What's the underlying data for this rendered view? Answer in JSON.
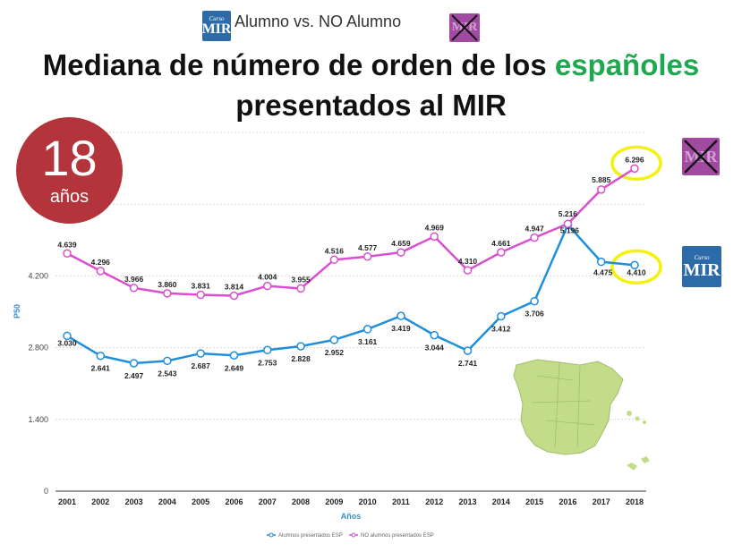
{
  "header": {
    "text": "Alumno vs. NO Alumno",
    "logo_small": "Curso",
    "logo_big": "MIR"
  },
  "title": {
    "line1_prefix": "Mediana de número de orden de los ",
    "line1_highlight": "españoles",
    "line2": "presentados al MIR",
    "highlight_color": "#1ea84f"
  },
  "badge": {
    "number": "18",
    "unit": "años",
    "color": "#b3343a"
  },
  "colors": {
    "alumnos": "#1f8fdc",
    "no_alumnos": "#d94fcf",
    "highlight_ring": "#f2f20a",
    "logo_blue": "#2d6aa8",
    "logo_purple": "#a24aa2"
  },
  "chart_data": {
    "type": "line",
    "categories": [
      "2001",
      "2002",
      "2003",
      "2004",
      "2005",
      "2006",
      "2007",
      "2008",
      "2009",
      "2010",
      "2011",
      "2012",
      "2013",
      "2014",
      "2015",
      "2016",
      "2017",
      "2018"
    ],
    "series": [
      {
        "name": "Alumnos presentados ESP",
        "values": [
          3030,
          2641,
          2497,
          2543,
          2687,
          2649,
          2753,
          2828,
          2952,
          3161,
          3419,
          3044,
          2741,
          3412,
          3706,
          5196,
          4475,
          4410
        ],
        "labels": [
          "3.030",
          "2.641",
          "2.497",
          "2.543",
          "2.687",
          "2.649",
          "2.753",
          "2.828",
          "2.952",
          "3.161",
          "3.419",
          "3.044",
          "2.741",
          "3.412",
          "3.706",
          "5.196",
          "4.475",
          "4.410"
        ]
      },
      {
        "name": "NO alumnos presentados ESP",
        "values": [
          4639,
          4296,
          3966,
          3860,
          3831,
          3814,
          4004,
          3955,
          4516,
          4577,
          4659,
          4969,
          4310,
          4661,
          4947,
          5216,
          5885,
          6296
        ],
        "labels": [
          "4.639",
          "4.296",
          "3.966",
          "3.860",
          "3.831",
          "3.814",
          "4.004",
          "3.955",
          "4.516",
          "4.577",
          "4.659",
          "4.969",
          "4.310",
          "4.661",
          "4.947",
          "5.216",
          "5.885",
          "6.296"
        ]
      }
    ],
    "xlabel": "Años",
    "ylabel": "P50",
    "ylim": [
      0,
      7000
    ],
    "y_ticks": [
      0,
      1400,
      2800,
      4200
    ],
    "y_tick_labels": [
      "0",
      "1.400",
      "2.800",
      "4.200"
    ],
    "grid": "horizontal dashed",
    "legend": "bottom"
  }
}
